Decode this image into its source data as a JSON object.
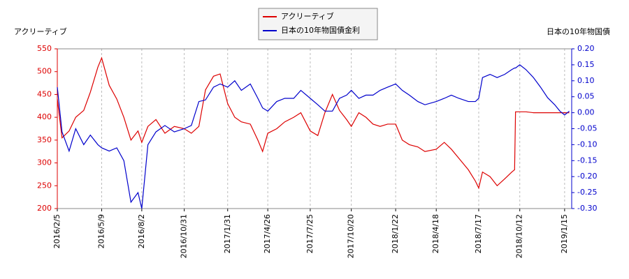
{
  "chart_data": {
    "type": "line",
    "y_label": "アクリーティブ",
    "y2_label": "日本の10年物国債",
    "x": [
      "2016/2/5",
      "2016/2/15",
      "2016/3/1",
      "2016/3/15",
      "2016/4/1",
      "2016/4/15",
      "2016/5/1",
      "2016/5/9",
      "2016/5/25",
      "2016/6/10",
      "2016/6/25",
      "2016/7/10",
      "2016/7/25",
      "2016/8/2",
      "2016/8/15",
      "2016/9/1",
      "2016/9/20",
      "2016/10/10",
      "2016/10/31",
      "2016/11/15",
      "2016/12/1",
      "2016/12/15",
      "2017/1/1",
      "2017/1/15",
      "2017/1/31",
      "2017/2/15",
      "2017/3/1",
      "2017/3/20",
      "2017/4/5",
      "2017/4/15",
      "2017/4/26",
      "2017/5/15",
      "2017/6/1",
      "2017/6/20",
      "2017/7/5",
      "2017/7/25",
      "2017/8/10",
      "2017/8/25",
      "2017/9/10",
      "2017/9/25",
      "2017/10/10",
      "2017/10/20",
      "2017/11/5",
      "2017/11/20",
      "2017/12/5",
      "2017/12/20",
      "2018/1/5",
      "2018/1/22",
      "2018/2/5",
      "2018/2/20",
      "2018/3/10",
      "2018/3/25",
      "2018/4/18",
      "2018/5/5",
      "2018/5/20",
      "2018/6/5",
      "2018/6/25",
      "2018/7/10",
      "2018/7/17",
      "2018/7/25",
      "2018/8/10",
      "2018/8/25",
      "2018/9/10",
      "2018/9/25",
      "2018/10/1",
      "2018/10/3",
      "2018/10/12",
      "2018/10/25",
      "2018/11/10",
      "2018/11/25",
      "2018/12/10",
      "2018/12/25",
      "2019/1/5",
      "2019/1/15",
      "2019/1/25"
    ],
    "series": [
      {
        "name": "アクリーティブ",
        "color": "#dd0000",
        "axis": "y",
        "values": [
          440,
          355,
          370,
          400,
          415,
          455,
          510,
          530,
          470,
          440,
          400,
          350,
          370,
          345,
          380,
          395,
          365,
          380,
          375,
          365,
          380,
          460,
          490,
          495,
          430,
          400,
          390,
          385,
          350,
          325,
          365,
          375,
          390,
          400,
          410,
          370,
          360,
          410,
          450,
          415,
          395,
          380,
          410,
          400,
          385,
          380,
          385,
          385,
          350,
          340,
          335,
          325,
          330,
          345,
          330,
          310,
          285,
          260,
          245,
          280,
          270,
          250,
          265,
          280,
          285,
          412,
          412,
          412,
          410,
          410,
          410,
          410,
          410,
          410,
          410
        ]
      },
      {
        "name": "日本の10年物国債金利",
        "color": "#0000cc",
        "axis": "y2",
        "values": [
          0.08,
          -0.06,
          -0.12,
          -0.05,
          -0.1,
          -0.07,
          -0.1,
          -0.11,
          -0.12,
          -0.11,
          -0.15,
          -0.28,
          -0.25,
          -0.3,
          -0.1,
          -0.06,
          -0.04,
          -0.06,
          -0.05,
          -0.04,
          0.035,
          0.04,
          0.08,
          0.09,
          0.08,
          0.1,
          0.07,
          0.09,
          0.045,
          0.015,
          0.005,
          0.035,
          0.045,
          0.045,
          0.07,
          0.045,
          0.025,
          0.005,
          0.005,
          0.045,
          0.055,
          0.07,
          0.045,
          0.055,
          0.055,
          0.07,
          0.08,
          0.09,
          0.07,
          0.055,
          0.035,
          0.025,
          0.035,
          0.045,
          0.055,
          0.045,
          0.035,
          0.035,
          0.045,
          0.11,
          0.12,
          0.11,
          0.12,
          0.135,
          0.14,
          0.14,
          0.15,
          0.135,
          0.11,
          0.08,
          0.047,
          0.025,
          0.005,
          -0.007,
          0.005
        ]
      }
    ],
    "xlim": [
      "2016/2/5",
      "2019/1/30"
    ],
    "xticks": [
      "2016/2/5",
      "2016/5/9",
      "2016/8/2",
      "2016/10/31",
      "2017/1/31",
      "2017/4/26",
      "2017/7/25",
      "2017/10/20",
      "2018/1/22",
      "2018/4/18",
      "2018/7/17",
      "2018/10/12",
      "2019/1/15"
    ],
    "ylim": [
      200,
      550
    ],
    "yticks": [
      200,
      250,
      300,
      350,
      400,
      450,
      500,
      550
    ],
    "y2lim": [
      -0.3,
      0.2
    ],
    "y2ticks": [
      {
        "value": -0.3,
        "label": "-0.30"
      },
      {
        "value": -0.25,
        "label": "-0.25"
      },
      {
        "value": -0.2,
        "label": "-0.20"
      },
      {
        "value": -0.15,
        "label": "-0.15"
      },
      {
        "value": -0.1,
        "label": "-0.10"
      },
      {
        "value": -0.05,
        "label": "-0.05"
      },
      {
        "value": 0,
        "label": "0.00"
      },
      {
        "value": 0.05,
        "label": "0.05"
      },
      {
        "value": 0.1,
        "label": "0.10"
      },
      {
        "value": 0.15,
        "label": "0.15"
      },
      {
        "value": 0.2,
        "label": "0.20"
      }
    ],
    "y_axis_color": "#dd0000",
    "y2_axis_color": "#0000cc",
    "grid": true,
    "legend": "top"
  }
}
